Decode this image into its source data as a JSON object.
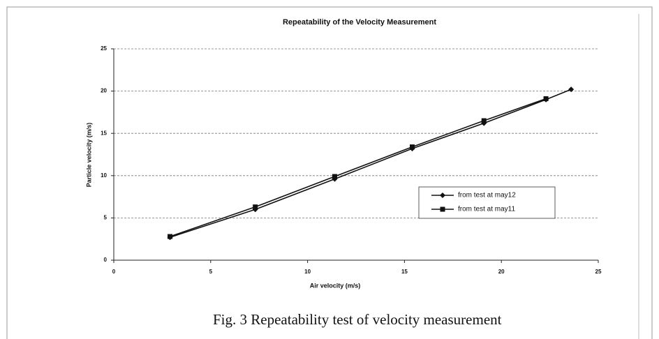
{
  "chart_data": {
    "type": "line",
    "title": "Repeatability of the Velocity Measurement",
    "x_label": "Air velocity (m/s)",
    "y_label": "Particle velocity (m/s)",
    "caption": "Fig. 3 Repeatability test of velocity measurement",
    "series": [
      {
        "name": "from test at may12",
        "color": "#111111",
        "marker": "diamond",
        "x": [
          2.9,
          7.3,
          11.4,
          15.4,
          19.1,
          22.3,
          23.6
        ],
        "values": [
          2.7,
          6.0,
          9.6,
          13.2,
          16.2,
          19.0,
          20.2
        ]
      },
      {
        "name": "from test at may11",
        "color": "#111111",
        "marker": "square",
        "x": [
          2.9,
          7.3,
          11.4,
          15.4,
          19.1,
          22.3
        ],
        "values": [
          2.8,
          6.3,
          9.9,
          13.4,
          16.5,
          19.1
        ]
      }
    ],
    "xlim": [
      0,
      25
    ],
    "xticks": [
      0,
      5,
      10,
      15,
      20,
      25
    ],
    "ylim": [
      0,
      25
    ],
    "yticks": [
      0,
      5,
      10,
      15,
      20,
      25
    ],
    "grid": true,
    "legend": "lower right"
  }
}
